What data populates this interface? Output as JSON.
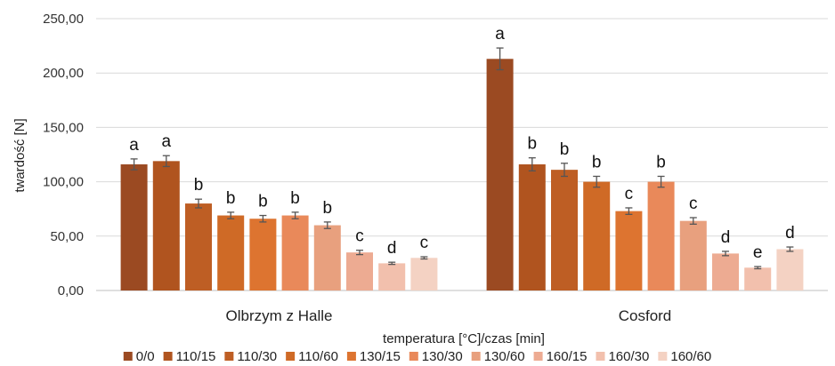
{
  "chart_data": {
    "type": "bar",
    "xlabel": "temperatura [°C]/czas [min]",
    "ylabel": "twardość [N]",
    "ylim": [
      0,
      250
    ],
    "yticks": [
      "0,00",
      "50,00",
      "100,00",
      "150,00",
      "200,00",
      "250,00"
    ],
    "grid": true,
    "legend_position": "bottom",
    "categories": [
      "Olbrzym  z Halle",
      "Cosford"
    ],
    "series": [
      {
        "name": "0/0",
        "color": "#9B4A22",
        "values": [
          116,
          213
        ],
        "errors": [
          5,
          10
        ],
        "labels": [
          "a",
          "a"
        ]
      },
      {
        "name": "110/15",
        "color": "#B0541F",
        "values": [
          119,
          116
        ],
        "errors": [
          5,
          6
        ],
        "labels": [
          "a",
          "b"
        ]
      },
      {
        "name": "110/30",
        "color": "#BE5E24",
        "values": [
          80,
          111
        ],
        "errors": [
          4,
          6
        ],
        "labels": [
          "b",
          "b"
        ]
      },
      {
        "name": "110/60",
        "color": "#CF6A26",
        "values": [
          69,
          100
        ],
        "errors": [
          3,
          5
        ],
        "labels": [
          "b",
          "b"
        ]
      },
      {
        "name": "130/15",
        "color": "#DD7430",
        "values": [
          66,
          73
        ],
        "errors": [
          3,
          3
        ],
        "labels": [
          "b",
          "c"
        ]
      },
      {
        "name": "130/30",
        "color": "#E9895A",
        "values": [
          69,
          100
        ],
        "errors": [
          3,
          5
        ],
        "labels": [
          "b",
          "b"
        ]
      },
      {
        "name": "130/60",
        "color": "#E8A07E",
        "values": [
          60,
          64
        ],
        "errors": [
          3,
          3
        ],
        "labels": [
          "b",
          "c"
        ]
      },
      {
        "name": "160/15",
        "color": "#EDAB92",
        "values": [
          35,
          34
        ],
        "errors": [
          2,
          2
        ],
        "labels": [
          "c",
          "d"
        ]
      },
      {
        "name": "160/30",
        "color": "#F2C0AD",
        "values": [
          25,
          21
        ],
        "errors": [
          1,
          1
        ],
        "labels": [
          "d",
          "e"
        ]
      },
      {
        "name": "160/60",
        "color": "#F4D2C3",
        "values": [
          30,
          38
        ],
        "errors": [
          1,
          2
        ],
        "labels": [
          "c",
          "d"
        ]
      }
    ]
  }
}
